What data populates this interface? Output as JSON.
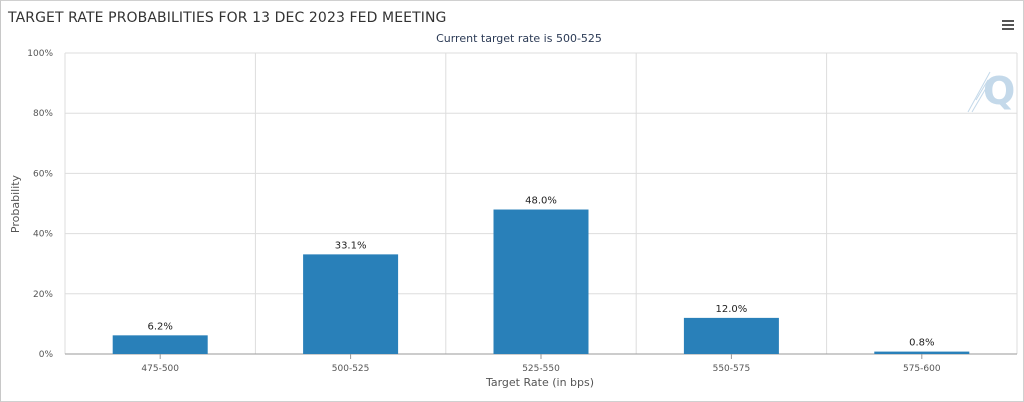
{
  "header": {
    "title": "TARGET RATE PROBABILITIES FOR 13 DEC 2023 FED MEETING",
    "subtitle": "Current target rate is 500-525",
    "menu_icon": "hamburger-menu-icon",
    "logo_text": "Q"
  },
  "colors": {
    "bar": "#2980b9",
    "grid": "#dddddd",
    "axis": "#999999",
    "logo": "#c4d9ea"
  },
  "chart_data": {
    "type": "bar",
    "title": "TARGET RATE PROBABILITIES FOR 13 DEC 2023 FED MEETING",
    "subtitle": "Current target rate is 500-525",
    "xlabel": "Target Rate (in bps)",
    "ylabel": "Probability",
    "categories": [
      "475-500",
      "500-525",
      "525-550",
      "550-575",
      "575-600"
    ],
    "values": [
      6.2,
      33.1,
      48.0,
      12.0,
      0.8
    ],
    "data_labels": [
      "6.2%",
      "33.1%",
      "48.0%",
      "12.0%",
      "0.8%"
    ],
    "ylim": [
      0,
      100
    ],
    "yticks": [
      0,
      20,
      40,
      60,
      80,
      100
    ],
    "ytick_labels": [
      "0%",
      "20%",
      "40%",
      "60%",
      "80%",
      "100%"
    ],
    "grid": true,
    "legend": "none"
  }
}
